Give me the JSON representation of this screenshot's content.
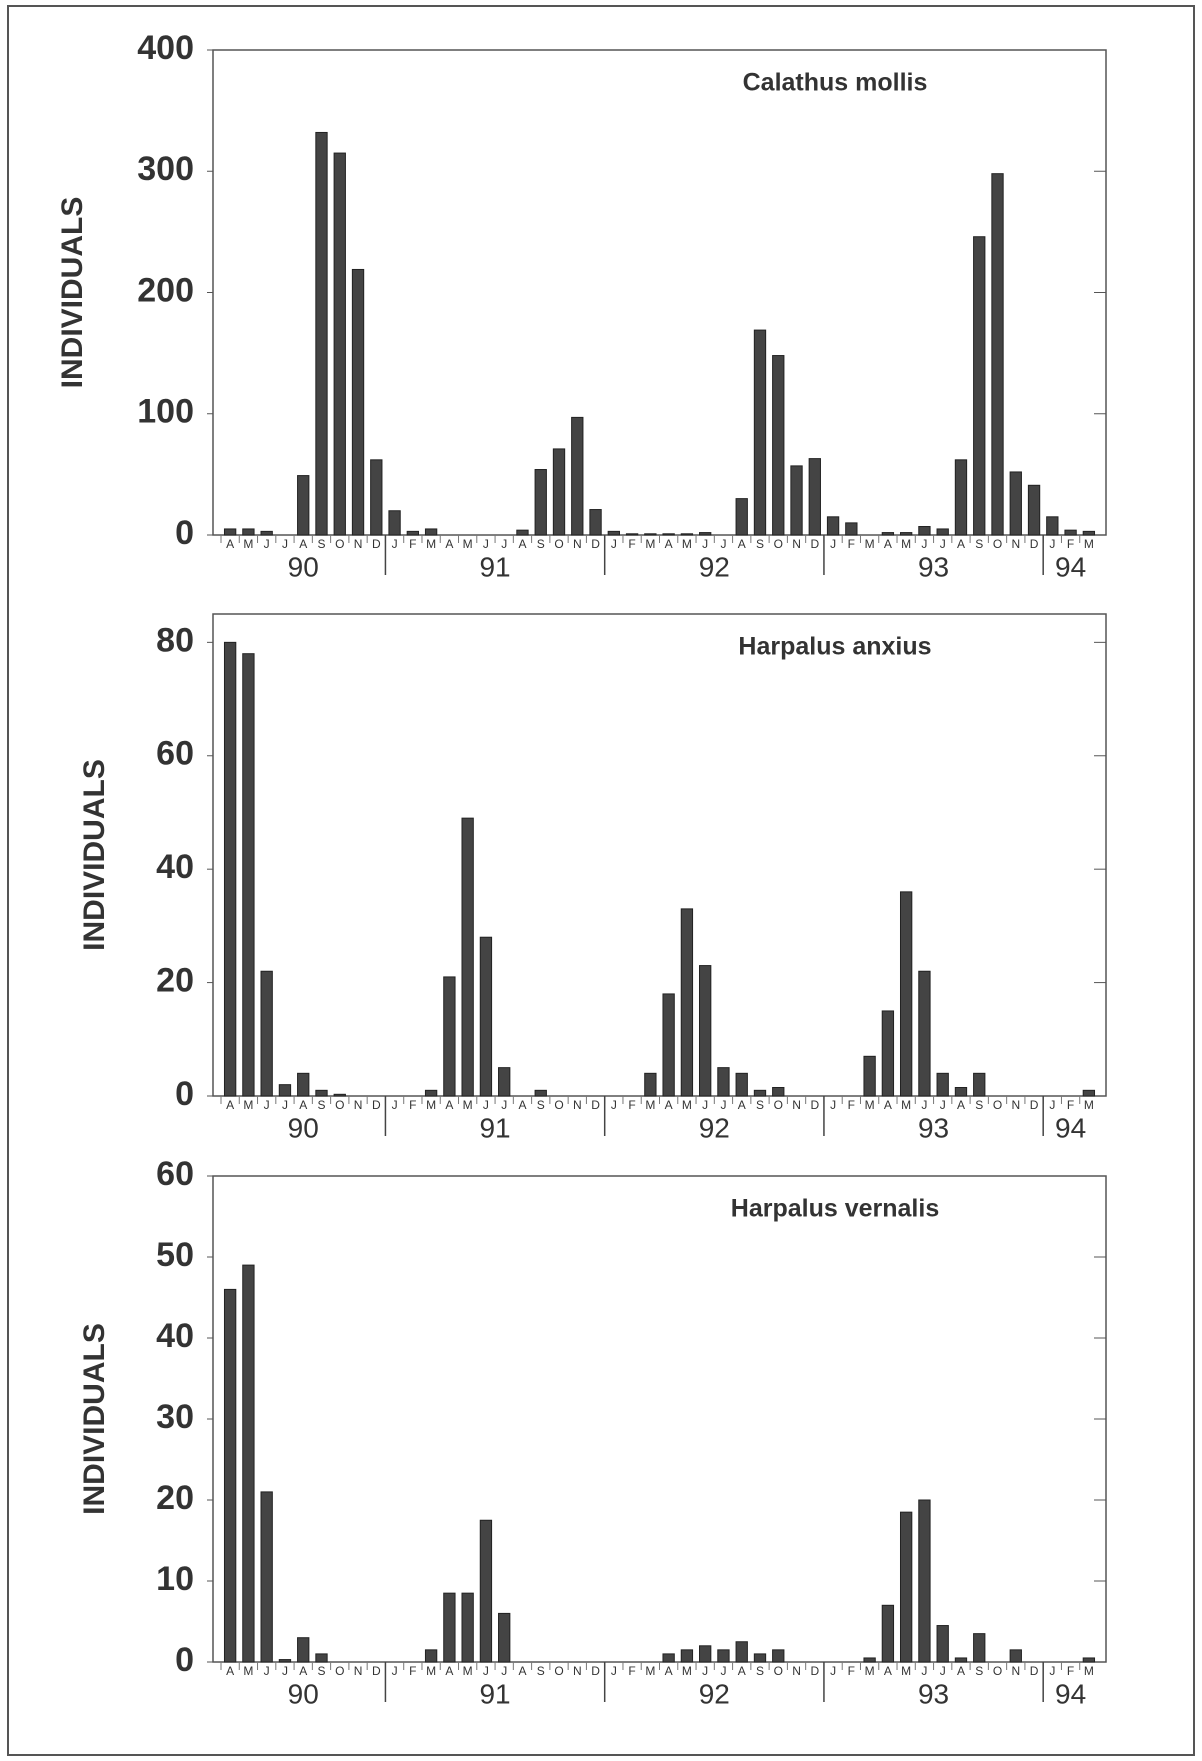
{
  "chart_data": [
    {
      "type": "bar",
      "title": "Calathus mollis",
      "y_label": "INDIVIDUALS",
      "color": "#444444",
      "categories": [
        "A",
        "M",
        "J",
        "J",
        "A",
        "S",
        "O",
        "N",
        "D",
        "J",
        "F",
        "M",
        "A",
        "M",
        "J",
        "J",
        "A",
        "S",
        "O",
        "N",
        "D",
        "J",
        "F",
        "M",
        "A",
        "M",
        "J",
        "J",
        "A",
        "S",
        "O",
        "N",
        "D",
        "J",
        "F",
        "M",
        "A",
        "M",
        "J",
        "J",
        "A",
        "S",
        "O",
        "N",
        "D",
        "J",
        "F",
        "M"
      ],
      "x_groups": [
        "90",
        "91",
        "92",
        "93",
        "94"
      ],
      "values": [
        5,
        5,
        3,
        0,
        49,
        332,
        315,
        219,
        62,
        20,
        3,
        5,
        0,
        0,
        0,
        0,
        4,
        54,
        71,
        97,
        21,
        3,
        1,
        1,
        1,
        1,
        2,
        0,
        30,
        169,
        148,
        57,
        63,
        15,
        10,
        0,
        2,
        2,
        7,
        5,
        62,
        246,
        298,
        52,
        41,
        15,
        4,
        3
      ],
      "ylim": [
        0,
        400
      ],
      "yticks": [
        0,
        100,
        200,
        300,
        400
      ]
    },
    {
      "type": "bar",
      "title": "Harpalus anxius",
      "y_label": "INDIVIDUALS",
      "color": "#444444",
      "categories": [
        "A",
        "M",
        "J",
        "J",
        "A",
        "S",
        "O",
        "N",
        "D",
        "J",
        "F",
        "M",
        "A",
        "M",
        "J",
        "J",
        "A",
        "S",
        "O",
        "N",
        "D",
        "J",
        "F",
        "M",
        "A",
        "M",
        "J",
        "J",
        "A",
        "S",
        "O",
        "N",
        "D",
        "J",
        "F",
        "M",
        "A",
        "M",
        "J",
        "J",
        "A",
        "S",
        "O",
        "N",
        "D",
        "J",
        "F",
        "M"
      ],
      "x_groups": [
        "90",
        "91",
        "92",
        "93",
        "94"
      ],
      "values": [
        80,
        78,
        22,
        2,
        4,
        1,
        0.3,
        0,
        0,
        0,
        0,
        1,
        21,
        49,
        28,
        5,
        0,
        1,
        0,
        0,
        0,
        0,
        0,
        4,
        18,
        33,
        23,
        5,
        4,
        1,
        1.5,
        0,
        0,
        0,
        0,
        7,
        15,
        36,
        22,
        4,
        1.5,
        4,
        0,
        0,
        0,
        0,
        0,
        1
      ],
      "ylim": [
        0,
        85
      ],
      "yticks": [
        0,
        20,
        40,
        60,
        80
      ]
    },
    {
      "type": "bar",
      "title": "Harpalus vernalis",
      "y_label": "INDIVIDUALS",
      "color": "#444444",
      "categories": [
        "A",
        "M",
        "J",
        "J",
        "A",
        "S",
        "O",
        "N",
        "D",
        "J",
        "F",
        "M",
        "A",
        "M",
        "J",
        "J",
        "A",
        "S",
        "O",
        "N",
        "D",
        "J",
        "F",
        "M",
        "A",
        "M",
        "J",
        "J",
        "A",
        "S",
        "O",
        "N",
        "D",
        "J",
        "F",
        "M",
        "A",
        "M",
        "J",
        "J",
        "A",
        "S",
        "O",
        "N",
        "D",
        "J",
        "F",
        "M"
      ],
      "x_groups": [
        "90",
        "91",
        "92",
        "93",
        "94"
      ],
      "values": [
        46,
        49,
        21,
        0.3,
        3,
        1,
        0,
        0,
        0,
        0,
        0,
        1.5,
        8.5,
        8.5,
        17.5,
        6,
        0,
        0,
        0,
        0,
        0,
        0,
        0,
        0,
        1,
        1.5,
        2,
        1.5,
        2.5,
        1,
        1.5,
        0,
        0,
        0,
        0,
        0.5,
        7,
        18.5,
        20,
        4.5,
        0.5,
        3.5,
        0,
        1.5,
        0,
        0,
        0,
        0.5
      ],
      "ylim": [
        0,
        60
      ],
      "yticks": [
        0,
        10,
        20,
        30,
        40,
        50,
        60
      ]
    }
  ]
}
